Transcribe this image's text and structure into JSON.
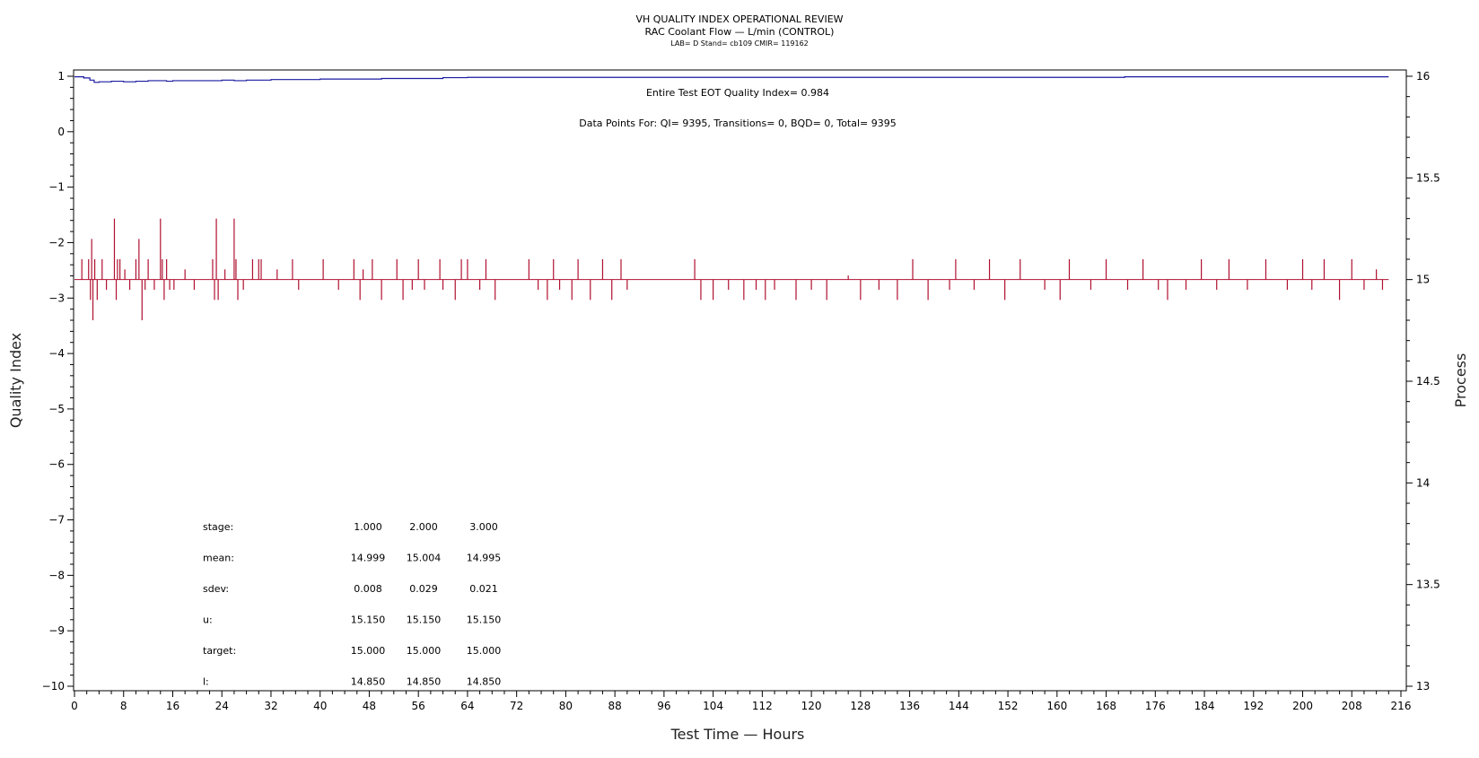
{
  "chart_data": {
    "type": "line",
    "title": "VH QUALITY INDEX OPERATIONAL REVIEW",
    "subtitle": "RAC Coolant Flow — L/min (CONTROL)",
    "subtitle2": "LAB= D Stand= cb109 CMIR= 119162",
    "xlabel": "Test Time — Hours",
    "ylabel_left": "Quality Index",
    "ylabel_right": "Process",
    "xlim": [
      0,
      216
    ],
    "ylim_left": [
      -10,
      1
    ],
    "ylim_right": [
      13,
      16
    ],
    "x_ticks": [
      0,
      8,
      16,
      24,
      32,
      40,
      48,
      56,
      64,
      72,
      80,
      88,
      96,
      104,
      112,
      120,
      128,
      136,
      144,
      152,
      160,
      168,
      176,
      184,
      192,
      200,
      208,
      216
    ],
    "y_ticks_left": [
      1,
      0,
      -1,
      -2,
      -3,
      -4,
      -5,
      -6,
      -7,
      -8,
      -9,
      -10
    ],
    "y_ticks_right": [
      "16",
      "15.5",
      "15",
      "14.5",
      "14",
      "13.5",
      "13"
    ],
    "annotation_qi": "Entire Test EOT Quality Index=   0.984",
    "annotation_points": "Data Points For: QI=  9395, Transitions=     0, BQD=     0, Total=  9395",
    "stats_table": {
      "rows": [
        {
          "label": "stage:",
          "values": [
            "1.000",
            "2.000",
            "3.000"
          ]
        },
        {
          "label": "mean:",
          "values": [
            "14.999",
            "15.004",
            "14.995"
          ]
        },
        {
          "label": "sdev:",
          "values": [
            "0.008",
            "0.029",
            "0.021"
          ]
        },
        {
          "label": "u:",
          "values": [
            "15.150",
            "15.150",
            "15.150"
          ]
        },
        {
          "label": "target:",
          "values": [
            "15.000",
            "15.000",
            "15.000"
          ]
        },
        {
          "label": "l:",
          "values": [
            "14.850",
            "14.850",
            "14.850"
          ]
        }
      ]
    },
    "quality_index_series": {
      "color": "#1a1aa0",
      "x": [
        0,
        1.5,
        2.5,
        3.2,
        4,
        6,
        8,
        10,
        12,
        15,
        16,
        20,
        24,
        26,
        28,
        30,
        32,
        40,
        50,
        58,
        60,
        64,
        80,
        100,
        130,
        170,
        171,
        190,
        214
      ],
      "y": [
        0.99,
        0.97,
        0.93,
        0.89,
        0.9,
        0.91,
        0.9,
        0.91,
        0.92,
        0.91,
        0.92,
        0.92,
        0.93,
        0.92,
        0.93,
        0.93,
        0.94,
        0.95,
        0.96,
        0.96,
        0.975,
        0.98,
        0.98,
        0.98,
        0.98,
        0.98,
        0.99,
        0.99,
        0.99
      ]
    },
    "process_series": {
      "color": "#b01030",
      "baseline": 15.0,
      "x_end": 214,
      "spikes": [
        [
          1.2,
          15.1
        ],
        [
          2.3,
          15.1
        ],
        [
          2.6,
          14.9
        ],
        [
          2.8,
          15.2
        ],
        [
          3.0,
          14.8
        ],
        [
          3.3,
          15.1
        ],
        [
          3.7,
          14.9
        ],
        [
          4.5,
          15.1
        ],
        [
          5.2,
          14.95
        ],
        [
          6.5,
          15.3
        ],
        [
          6.8,
          14.9
        ],
        [
          7.0,
          15.1
        ],
        [
          7.4,
          15.1
        ],
        [
          8.2,
          15.05
        ],
        [
          9.0,
          14.95
        ],
        [
          10.0,
          15.1
        ],
        [
          10.5,
          15.2
        ],
        [
          11.0,
          14.8
        ],
        [
          11.5,
          14.95
        ],
        [
          12.0,
          15.1
        ],
        [
          13.0,
          14.95
        ],
        [
          14.0,
          15.3
        ],
        [
          14.3,
          15.1
        ],
        [
          14.6,
          14.9
        ],
        [
          15.0,
          15.1
        ],
        [
          15.5,
          14.95
        ],
        [
          16.2,
          14.95
        ],
        [
          18.0,
          15.05
        ],
        [
          19.5,
          14.95
        ],
        [
          22.5,
          15.1
        ],
        [
          22.8,
          14.9
        ],
        [
          23.1,
          15.3
        ],
        [
          23.4,
          14.9
        ],
        [
          24.5,
          15.05
        ],
        [
          26.0,
          15.3
        ],
        [
          26.3,
          15.1
        ],
        [
          26.6,
          14.9
        ],
        [
          27.5,
          14.95
        ],
        [
          29.0,
          15.1
        ],
        [
          30.0,
          15.1
        ],
        [
          30.4,
          15.1
        ],
        [
          33.0,
          15.05
        ],
        [
          35.5,
          15.1
        ],
        [
          36.5,
          14.95
        ],
        [
          40.5,
          15.1
        ],
        [
          43.0,
          14.95
        ],
        [
          45.5,
          15.1
        ],
        [
          46.5,
          14.9
        ],
        [
          47.0,
          15.05
        ],
        [
          48.5,
          15.1
        ],
        [
          50.0,
          14.9
        ],
        [
          52.5,
          15.1
        ],
        [
          53.5,
          14.9
        ],
        [
          55.0,
          14.95
        ],
        [
          56.0,
          15.1
        ],
        [
          57.0,
          14.95
        ],
        [
          59.5,
          15.1
        ],
        [
          60.0,
          14.95
        ],
        [
          62.0,
          14.9
        ],
        [
          63.0,
          15.1
        ],
        [
          64.0,
          15.1
        ],
        [
          66.0,
          14.95
        ],
        [
          67.0,
          15.1
        ],
        [
          68.5,
          14.9
        ],
        [
          74.0,
          15.1
        ],
        [
          75.5,
          14.95
        ],
        [
          77.0,
          14.9
        ],
        [
          78.0,
          15.1
        ],
        [
          79.0,
          14.95
        ],
        [
          81.0,
          14.9
        ],
        [
          82.0,
          15.1
        ],
        [
          84.0,
          14.9
        ],
        [
          86.0,
          15.1
        ],
        [
          87.5,
          14.9
        ],
        [
          89.0,
          15.1
        ],
        [
          90.0,
          14.95
        ],
        [
          101.0,
          15.1
        ],
        [
          102.0,
          14.9
        ],
        [
          104.0,
          14.9
        ],
        [
          106.5,
          14.95
        ],
        [
          109.0,
          14.9
        ],
        [
          111.0,
          14.95
        ],
        [
          112.5,
          14.9
        ],
        [
          114.0,
          14.95
        ],
        [
          117.5,
          14.9
        ],
        [
          120.0,
          14.95
        ],
        [
          122.5,
          14.9
        ],
        [
          126.0,
          15.02
        ],
        [
          128.0,
          14.9
        ],
        [
          131.0,
          14.95
        ],
        [
          134.0,
          14.9
        ],
        [
          136.5,
          15.1
        ],
        [
          139.0,
          14.9
        ],
        [
          142.5,
          14.95
        ],
        [
          143.5,
          15.1
        ],
        [
          146.5,
          14.95
        ],
        [
          149.0,
          15.1
        ],
        [
          151.5,
          14.9
        ],
        [
          154.0,
          15.1
        ],
        [
          158.0,
          14.95
        ],
        [
          160.5,
          14.9
        ],
        [
          162.0,
          15.1
        ],
        [
          165.5,
          14.95
        ],
        [
          168.0,
          15.1
        ],
        [
          171.5,
          14.95
        ],
        [
          174.0,
          15.1
        ],
        [
          176.5,
          14.95
        ],
        [
          178.0,
          14.9
        ],
        [
          181.0,
          14.95
        ],
        [
          183.5,
          15.1
        ],
        [
          186.0,
          14.95
        ],
        [
          188.0,
          15.1
        ],
        [
          191.0,
          14.95
        ],
        [
          194.0,
          15.1
        ],
        [
          197.5,
          14.95
        ],
        [
          200.0,
          15.1
        ],
        [
          201.5,
          14.95
        ],
        [
          203.5,
          15.1
        ],
        [
          206.0,
          14.9
        ],
        [
          208.0,
          15.1
        ],
        [
          210.0,
          14.95
        ],
        [
          212.0,
          15.05
        ],
        [
          213.0,
          14.95
        ]
      ]
    }
  }
}
